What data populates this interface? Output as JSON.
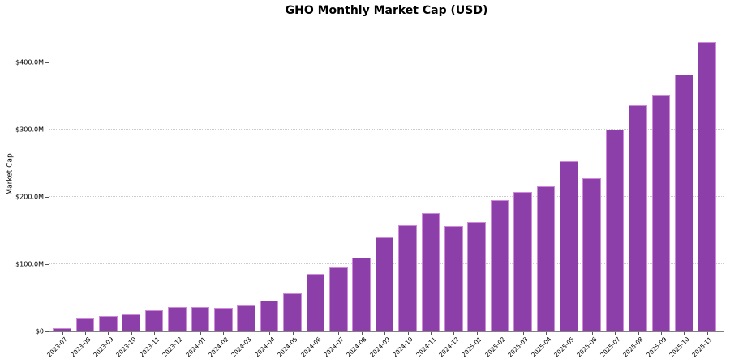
{
  "chart_data": {
    "type": "bar",
    "title": "GHO Monthly Market Cap (USD)",
    "xlabel": "",
    "ylabel": "Market Cap",
    "unit": "USD millions",
    "categories": [
      "2023-07",
      "2023-08",
      "2023-09",
      "2023-10",
      "2023-11",
      "2023-12",
      "2024-01",
      "2024-02",
      "2024-03",
      "2024-04",
      "2024-05",
      "2024-06",
      "2024-07",
      "2024-08",
      "2024-09",
      "2024-10",
      "2024-11",
      "2024-12",
      "2025-01",
      "2025-02",
      "2025-03",
      "2025-04",
      "2025-05",
      "2025-06",
      "2025-07",
      "2025-08",
      "2025-09",
      "2025-10",
      "2025-11"
    ],
    "values": [
      5,
      19,
      23,
      25,
      31,
      36,
      36,
      35,
      39,
      46,
      56,
      85,
      95,
      110,
      140,
      158,
      176,
      157,
      162,
      195,
      207,
      215,
      253,
      227,
      300,
      336,
      351,
      381,
      430
    ],
    "ylim": [
      0,
      450
    ],
    "yticks": [
      {
        "value": 0,
        "label": "$0"
      },
      {
        "value": 100,
        "label": "$100.0M"
      },
      {
        "value": 200,
        "label": "$200.0M"
      },
      {
        "value": 300,
        "label": "$300.0M"
      },
      {
        "value": 400,
        "label": "$400.0M"
      }
    ],
    "grid": {
      "axis": "y",
      "style": "dotted",
      "color": "#cccccc"
    },
    "legend": null,
    "colors": {
      "bar_fill": "#8d3fa9",
      "bar_edge": "#cf8bd8",
      "spine": "#808080",
      "tick": "#555555",
      "text": "#000000",
      "background": "#ffffff"
    }
  }
}
